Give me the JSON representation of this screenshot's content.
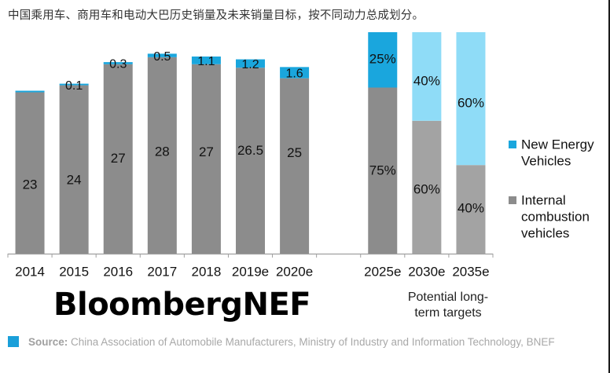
{
  "header": {
    "title": "中国乘用车、商用车和电动大巴历史销量及未来销量目标，按不同动力总成划分。"
  },
  "chart_data": [
    {
      "type": "bar",
      "stacked": true,
      "title": "",
      "xlabel": "",
      "ylabel": "",
      "categories": [
        "2014",
        "2015",
        "2016",
        "2017",
        "2018",
        "2019e",
        "2020e"
      ],
      "series": [
        {
          "name": "Internal combustion vehicles",
          "values": [
            23,
            24,
            27,
            28,
            27,
            26.5,
            25
          ],
          "labels": [
            "23",
            "24",
            "27",
            "28",
            "27",
            "26.5",
            "25"
          ],
          "color": "#8c8c8c"
        },
        {
          "name": "New Energy Vehicles",
          "values": [
            0.05,
            0.1,
            0.3,
            0.5,
            1.1,
            1.2,
            1.6
          ],
          "labels": [
            "",
            "0.1",
            "0.3",
            "0.5",
            "1.1",
            "1.2",
            "1.6"
          ],
          "color": "#1aa6dd"
        }
      ],
      "ylim": [
        0,
        30
      ],
      "grid": false
    },
    {
      "type": "bar",
      "stacked": true,
      "percent": true,
      "categories": [
        "2025e",
        "2030e",
        "2035e"
      ],
      "series": [
        {
          "name": "Internal combustion vehicles",
          "values": [
            75,
            60,
            40
          ],
          "labels": [
            "75%",
            "60%",
            "40%"
          ],
          "colors": [
            "#8c8c8c",
            "#a3a3a3",
            "#a3a3a3"
          ]
        },
        {
          "name": "New Energy Vehicles",
          "values": [
            25,
            40,
            60
          ],
          "labels": [
            "25%",
            "40%",
            "60%"
          ],
          "colors": [
            "#1aa6dd",
            "#8fdcf7",
            "#8fdcf7"
          ]
        }
      ],
      "ylim": [
        0,
        100
      ],
      "group_label": "Potential long-term targets"
    }
  ],
  "legend": {
    "placement": "right",
    "items": [
      {
        "label_lines": [
          "New Energy",
          "Vehicles"
        ],
        "color": "#1aa6dd"
      },
      {
        "label_lines": [
          "Internal",
          "combustion",
          "vehicles"
        ],
        "color": "#8c8c8c"
      }
    ]
  },
  "brand": "BloombergNEF",
  "group_caption": {
    "line1": "Potential long-",
    "line2": "term targets"
  },
  "source": {
    "label": "Source:",
    "text": " China Association of Automobile Manufacturers, Ministry of Industry and Information Technology, BNEF"
  }
}
